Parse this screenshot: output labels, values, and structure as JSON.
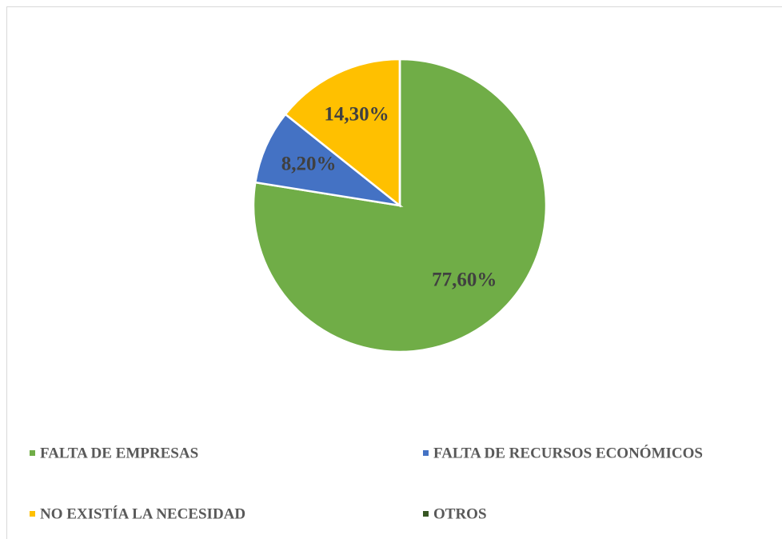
{
  "chart_data": {
    "type": "pie",
    "categories": [
      "FALTA DE EMPRESAS",
      "FALTA DE RECURSOS ECONÓMICOS",
      "NO EXISTÍA LA NECESIDAD",
      "OTROS"
    ],
    "values": [
      77.6,
      8.2,
      14.3,
      0
    ],
    "value_labels": [
      "77,60%",
      "8,20%",
      "14,30%",
      null
    ],
    "colors": [
      "#70ad47",
      "#4472c4",
      "#ffc000",
      "#375623"
    ],
    "legend": "bottom"
  }
}
